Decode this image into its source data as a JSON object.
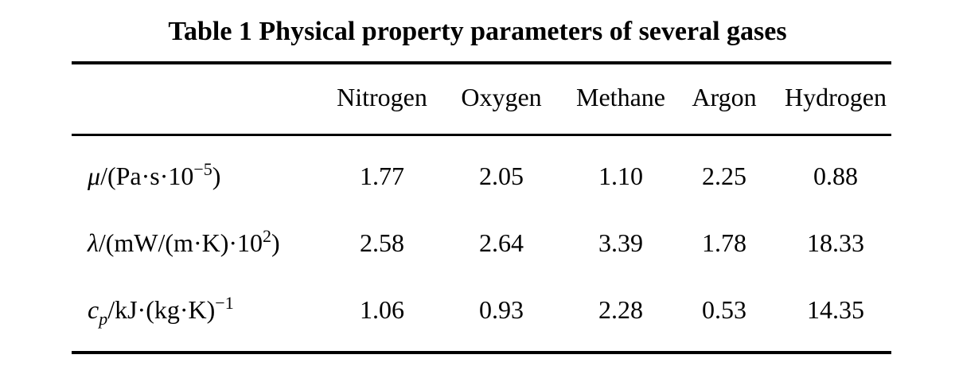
{
  "caption": "Table 1 Physical property parameters of several gases",
  "columns": [
    "Nitrogen",
    "Oxygen",
    "Methane",
    "Argon",
    "Hydrogen"
  ],
  "rows": [
    {
      "label": {
        "symbol": "μ",
        "unit": "/(Pa·s·10",
        "sup": "−5",
        "close": ")"
      },
      "values": [
        "1.77",
        "2.05",
        "1.10",
        "2.25",
        "0.88"
      ]
    },
    {
      "label": {
        "symbol": "λ",
        "unit": "/(mW/(m·K)·10",
        "sup": "2",
        "close": ")"
      },
      "values": [
        "2.58",
        "2.64",
        "3.39",
        "1.78",
        "18.33"
      ]
    },
    {
      "label": {
        "symbol": "c",
        "sub": "p",
        "unit": "/kJ·(kg·K)",
        "sup": "−1"
      },
      "values": [
        "1.06",
        "0.93",
        "2.28",
        "0.53",
        "14.35"
      ]
    }
  ]
}
